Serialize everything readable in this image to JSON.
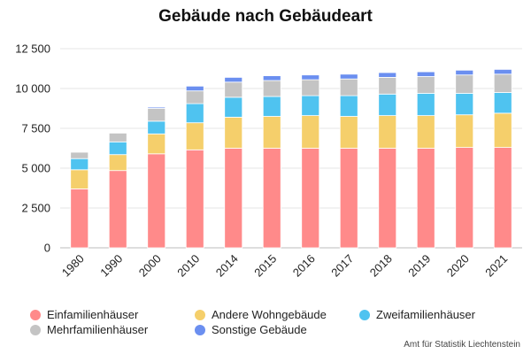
{
  "chart_data": {
    "type": "bar",
    "stacked": true,
    "title": "Gebäude nach Gebäudeart",
    "categories": [
      "1980",
      "1990",
      "2000",
      "2010",
      "2014",
      "2015",
      "2016",
      "2017",
      "2018",
      "2019",
      "2020",
      "2021"
    ],
    "series": [
      {
        "name": "Einfamilienhäuser",
        "color": "#ff8a8a",
        "values": [
          3700,
          4850,
          5900,
          6150,
          6250,
          6250,
          6250,
          6250,
          6250,
          6250,
          6300,
          6300
        ]
      },
      {
        "name": "Andere Wohngebäude",
        "color": "#f5cf6b",
        "values": [
          1200,
          1000,
          1250,
          1700,
          1950,
          2000,
          2050,
          2000,
          2050,
          2050,
          2050,
          2150
        ]
      },
      {
        "name": "Zweifamilienhäuser",
        "color": "#4fc3f0",
        "values": [
          700,
          800,
          800,
          1200,
          1250,
          1250,
          1250,
          1300,
          1350,
          1400,
          1350,
          1300
        ]
      },
      {
        "name": "Mehrfamilienhäuser",
        "color": "#c4c4c4",
        "values": [
          400,
          550,
          800,
          800,
          950,
          1000,
          1000,
          1050,
          1050,
          1050,
          1150,
          1150
        ]
      },
      {
        "name": "Sonstige Gebäude",
        "color": "#6b8ff0",
        "values": [
          0,
          0,
          80,
          300,
          300,
          300,
          300,
          300,
          300,
          300,
          300,
          300
        ]
      }
    ],
    "y_ticks": [
      "0",
      "2 500",
      "5 000",
      "7 500",
      "10 000",
      "12 500"
    ],
    "ylim": [
      0,
      12500
    ],
    "grid": true,
    "legend_position": "bottom"
  },
  "source": "Amt für Statistik Liechtenstein"
}
